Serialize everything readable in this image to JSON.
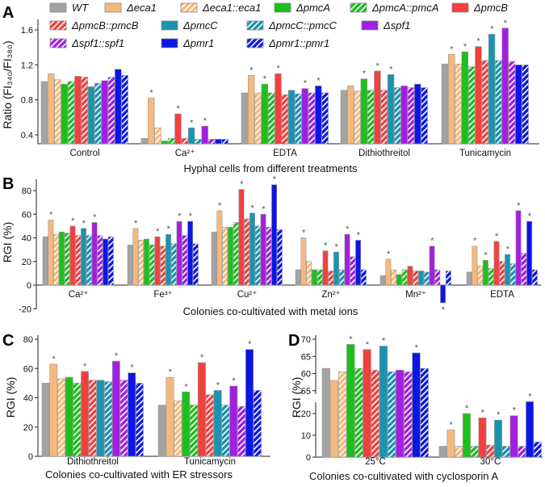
{
  "series": [
    {
      "name": "WT",
      "color": "#a3a3a3",
      "hatched": false
    },
    {
      "name": "Δeca1",
      "color": "#f6b97d",
      "hatched": false
    },
    {
      "name": "Δeca1::eca1",
      "color": "#f6b97d",
      "hatched": true
    },
    {
      "name": "ΔpmcA",
      "color": "#1cbf1c",
      "hatched": false
    },
    {
      "name": "ΔpmcA::pmcA",
      "color": "#1cbf1c",
      "hatched": true
    },
    {
      "name": "ΔpmcB",
      "color": "#f2403f",
      "hatched": false
    },
    {
      "name": "ΔpmcB::pmcB",
      "color": "#f2403f",
      "hatched": true
    },
    {
      "name": "ΔpmcC",
      "color": "#1b93ae",
      "hatched": false
    },
    {
      "name": "ΔpmcC::pmcC",
      "color": "#1b93ae",
      "hatched": true
    },
    {
      "name": "Δspf1",
      "color": "#a21fe0",
      "hatched": false
    },
    {
      "name": "Δspf1::spf1",
      "color": "#a21fe0",
      "hatched": true
    },
    {
      "name": "Δpmr1",
      "color": "#0b16e6",
      "hatched": false
    },
    {
      "name": "Δpmr1::pmr1",
      "color": "#0b16e6",
      "hatched": true
    }
  ],
  "chart_data": [
    {
      "panel": "A",
      "type": "bar",
      "ylabel": "Ratio (FI₃₄₀/FI₃₈₀)",
      "xlabel": "Hyphal cells from different treatments",
      "ylim": [
        0.3,
        1.7
      ],
      "yticks": [
        "0.4",
        "0.8",
        "1.2",
        "1.6"
      ],
      "ytick_values": [
        0.4,
        0.8,
        1.2,
        1.6
      ],
      "marker": "*",
      "categories": [
        "Control",
        "Ca²⁺",
        "EDTA",
        "Dithiothreitol",
        "Tunicamycin"
      ],
      "values": [
        [
          1.01,
          1.1,
          1.03,
          0.98,
          1.01,
          1.07,
          1.06,
          0.95,
          0.99,
          1.02,
          1.06,
          1.15,
          1.08
        ],
        [
          0.36,
          0.82,
          0.48,
          0.33,
          0.36,
          0.64,
          0.36,
          0.48,
          0.35,
          0.5,
          0.35,
          0.35,
          0.35
        ],
        [
          0.88,
          1.08,
          0.88,
          0.98,
          0.88,
          1.1,
          0.86,
          0.91,
          0.87,
          0.93,
          0.88,
          0.96,
          0.88
        ],
        [
          0.91,
          0.96,
          0.9,
          1.04,
          0.91,
          1.13,
          0.91,
          1.09,
          0.94,
          0.96,
          0.94,
          0.98,
          0.94
        ],
        [
          1.21,
          1.32,
          1.21,
          1.35,
          1.18,
          1.41,
          1.25,
          1.55,
          1.25,
          1.62,
          1.24,
          1.2,
          1.2
        ]
      ],
      "significant": [
        [],
        [
          1,
          5,
          7,
          9
        ],
        [
          1,
          3,
          5,
          9,
          11
        ],
        [
          3,
          5,
          7
        ],
        [
          1,
          3,
          5,
          7,
          9
        ]
      ]
    },
    {
      "panel": "B",
      "type": "bar",
      "ylabel": "RGI (%)",
      "xlabel": "Colonies co-cultivated with metal ions",
      "ylim": [
        -20,
        90
      ],
      "yticks": [
        "-20",
        "0",
        "20",
        "40",
        "60",
        "80"
      ],
      "ytick_values": [
        -20,
        0,
        20,
        40,
        60,
        80
      ],
      "marker": "*",
      "categories": [
        "Ca²⁺",
        "Fe³⁺",
        "Cu²⁺",
        "Zn²⁺",
        "Mn²⁺",
        "EDTA"
      ],
      "values": [
        [
          41,
          55,
          43,
          45,
          44,
          50,
          42,
          48,
          42,
          53,
          42,
          39,
          41
        ],
        [
          34,
          48,
          38,
          39,
          34,
          41,
          33,
          43,
          35,
          54,
          42,
          54,
          35
        ],
        [
          45,
          63,
          49,
          49,
          53,
          81,
          56,
          61,
          50,
          60,
          49,
          85,
          47
        ],
        [
          13,
          40,
          20,
          13,
          13,
          29,
          12,
          28,
          13,
          43,
          24,
          38,
          13
        ],
        [
          8,
          22,
          13,
          9,
          13,
          16,
          12,
          12,
          11,
          33,
          13,
          -15,
          12
        ],
        [
          11,
          33,
          16,
          21,
          14,
          37,
          20,
          26,
          18,
          63,
          27,
          54,
          13
        ]
      ],
      "significant": [
        [
          1,
          5,
          7,
          9
        ],
        [
          1,
          5,
          7,
          9,
          11
        ],
        [
          1,
          5,
          7,
          9,
          11
        ],
        [
          1,
          5,
          7,
          9,
          11
        ],
        [
          1,
          9,
          11
        ],
        [
          1,
          3,
          5,
          7,
          9,
          11
        ]
      ]
    },
    {
      "panel": "C",
      "type": "bar",
      "ylabel": "RGI (%)",
      "xlabel": "Colonies co-cultivated with ER stressors",
      "ylim": [
        0,
        80
      ],
      "yticks": [
        "0",
        "20",
        "40",
        "60",
        "80"
      ],
      "ytick_values": [
        0,
        20,
        40,
        60,
        80
      ],
      "marker": "*",
      "categories": [
        "Dithiothreitol",
        "Tunicamycin"
      ],
      "values": [
        [
          50,
          63,
          53,
          54,
          50,
          58,
          52,
          52,
          51,
          65,
          52,
          57,
          50
        ],
        [
          35,
          54,
          38,
          44,
          35,
          64,
          42,
          45,
          35,
          48,
          34,
          73,
          45
        ]
      ],
      "significant": [
        [
          1,
          5,
          9,
          11
        ],
        [
          1,
          3,
          5,
          7,
          9,
          11
        ]
      ]
    },
    {
      "panel": "D",
      "type": "bar",
      "ylabel": "RGI (%)",
      "xlabel": "Colonies co-cultivated with cyclosporin A",
      "ylim": [
        0,
        70
      ],
      "axis_break": [
        25,
        54
      ],
      "yticks": [
        "0",
        "10",
        "20",
        "55",
        "60",
        "65",
        "70"
      ],
      "ytick_values": [
        0,
        10,
        20,
        55,
        60,
        65,
        70
      ],
      "marker": "*",
      "categories": [
        "25°C",
        "30°C"
      ],
      "values": [
        [
          61.5,
          58,
          60.5,
          68.5,
          61.5,
          67,
          61,
          68,
          60.5,
          61,
          60.5,
          66,
          61.5
        ],
        [
          5,
          12.5,
          5,
          20,
          5,
          18,
          5.5,
          17,
          5,
          19,
          5,
          27,
          7
        ]
      ],
      "significant": [
        [
          3,
          5,
          7,
          11
        ],
        [
          1,
          3,
          5,
          7,
          9,
          11
        ]
      ]
    }
  ]
}
